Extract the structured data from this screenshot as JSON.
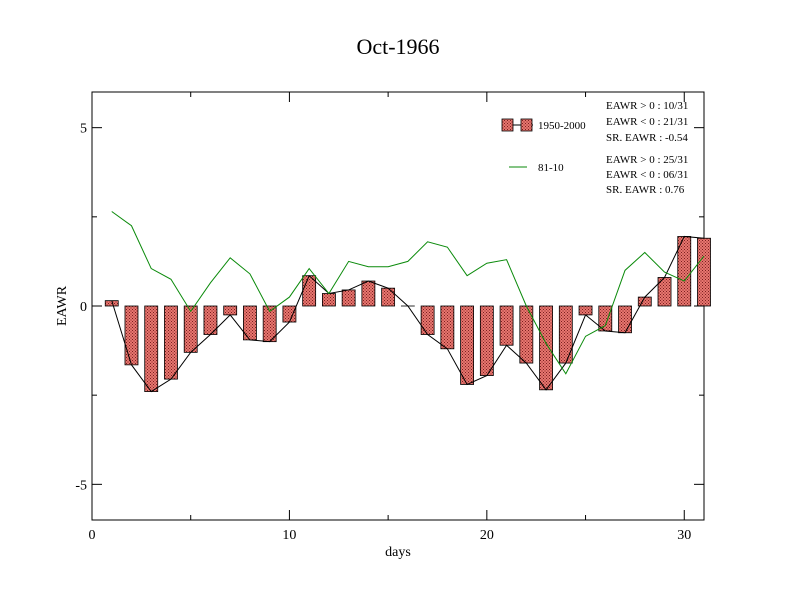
{
  "chart_data": {
    "type": "bar",
    "title": "Oct-1966",
    "xlabel": "days",
    "ylabel": "EAWR",
    "xlim": [
      0,
      31
    ],
    "ylim": [
      -6,
      6
    ],
    "x_ticks": [
      0,
      10,
      20,
      30
    ],
    "y_ticks": [
      5,
      0,
      -5
    ],
    "x_tick_labels": [
      "0",
      "10",
      "20",
      "30"
    ],
    "y_tick_labels": [
      "5",
      "0",
      "-5"
    ],
    "days": [
      1,
      2,
      3,
      4,
      5,
      6,
      7,
      8,
      9,
      10,
      11,
      12,
      13,
      14,
      15,
      16,
      17,
      18,
      19,
      20,
      21,
      22,
      23,
      24,
      25,
      26,
      27,
      28,
      29,
      30,
      31
    ],
    "series": [
      {
        "name": "1950-2000",
        "kind": "bar",
        "values": [
          0.15,
          -1.65,
          -2.4,
          -2.05,
          -1.3,
          -0.8,
          -0.25,
          -0.95,
          -1.0,
          -0.45,
          0.85,
          0.35,
          0.45,
          0.7,
          0.5,
          0.0,
          -0.8,
          -1.2,
          -2.2,
          -1.95,
          -1.1,
          -1.6,
          -2.35,
          -1.6,
          -0.25,
          -0.7,
          -0.75,
          0.25,
          0.8,
          1.95,
          1.9
        ],
        "color": "#e8766f"
      },
      {
        "name": "81-10",
        "kind": "line",
        "values": [
          2.65,
          2.25,
          1.05,
          0.75,
          -0.15,
          0.65,
          1.35,
          0.9,
          -0.15,
          0.25,
          1.05,
          0.35,
          1.25,
          1.1,
          1.1,
          1.25,
          1.8,
          1.65,
          0.85,
          1.2,
          1.3,
          0.0,
          -1.05,
          -1.9,
          -0.85,
          -0.55,
          1.0,
          1.5,
          0.95,
          0.7,
          1.4
        ],
        "color": "#0a8a0a"
      }
    ],
    "connecting_line_color": "#000000",
    "legend": [
      {
        "label": "1950-2000",
        "symbol": "bar"
      },
      {
        "label": "81-10",
        "symbol": "line"
      }
    ],
    "stats_1950_2000": [
      "EAWR > 0 : 10/31",
      "EAWR < 0 : 21/31",
      "SR. EAWR : -0.54"
    ],
    "stats_81_10": [
      "EAWR > 0 : 25/31",
      "EAWR < 0 : 06/31",
      "SR. EAWR :  0.76"
    ],
    "grid": false,
    "legend_position": "top-right"
  }
}
